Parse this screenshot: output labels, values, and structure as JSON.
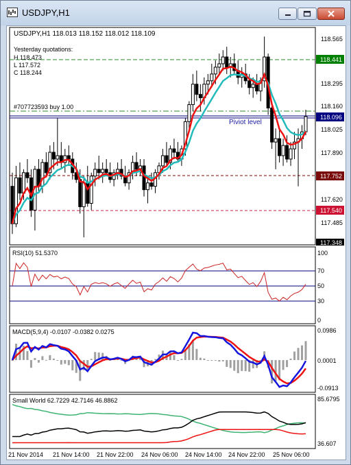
{
  "window": {
    "title": "USDJPY,H1",
    "buttons": {
      "minimize": "minimize-icon",
      "maximize": "maximize-icon",
      "close": "close-icon"
    }
  },
  "colors": {
    "bull_candle": "#ffffff",
    "bear_candle": "#000000",
    "ma_fast": "#ee1111",
    "ma_slow": "#22bbbb",
    "rsi_line": "#cc2222",
    "level_line": "#000080",
    "macd_main": "#1515e0",
    "macd_signal": "#ee1111",
    "macd_hist": "#a0a0a0",
    "sw_green": "#3cb371",
    "sw_black": "#000000",
    "sw_red": "#ee1111",
    "price_tag_green": "#008000",
    "price_tag_red": "#aa0000",
    "price_tag_blue": "#000080"
  },
  "main_panel": {
    "header": "USDJPY,H1  118.013 118.152 118.012 118.109",
    "yesterday": {
      "title": "Yesterday quotations:",
      "high": "H 118.473",
      "low": "L 117.572",
      "close": "C 118.244"
    },
    "order_label": "#707723593 buy 1.00",
    "pivot_label": "Piviot level",
    "axis_ticks": [
      "118.565",
      "118.295",
      "118.160",
      "118.025",
      "117.890",
      "117.620",
      "117.485",
      "117.348"
    ],
    "price_tags": [
      {
        "value": "118.441",
        "style": "green"
      },
      {
        "value": "118.096",
        "style": "blue"
      },
      {
        "value": "117.752",
        "style": "darkred"
      },
      {
        "value": "117.540",
        "style": "red"
      }
    ]
  },
  "rsi_panel": {
    "label": "RSI(10) 51.5370",
    "axis_ticks": [
      "100",
      "70",
      "50",
      "30",
      "0"
    ]
  },
  "macd_panel": {
    "label": "MACD(5,9,4) -0.0107 -0.0382 0.0275",
    "axis_ticks": [
      "0.0986",
      "0.0001",
      "-0.0913"
    ]
  },
  "sw_panel": {
    "label": "Small World 62.7229 42.7146 46.8862",
    "axis_ticks": [
      "85.6795",
      "36.607"
    ]
  },
  "time_axis": [
    "21 Nov 2014",
    "21 Nov 14:00",
    "21 Nov 22:00",
    "24 Nov 06:00",
    "24 Nov 14:00",
    "24 Nov 22:00",
    "25 Nov 06:00"
  ],
  "chart_data": {
    "type": "candlestick",
    "symbol": "USDJPY",
    "timeframe": "H1",
    "ylim": [
      117.348,
      118.65
    ],
    "candles": [
      [
        117.7,
        117.78,
        117.42,
        117.48
      ],
      [
        117.48,
        117.82,
        117.46,
        117.75
      ],
      [
        117.75,
        117.84,
        117.62,
        117.66
      ],
      [
        117.66,
        117.8,
        117.62,
        117.78
      ],
      [
        117.78,
        117.86,
        117.72,
        117.75
      ],
      [
        117.75,
        117.8,
        117.52,
        117.56
      ],
      [
        117.56,
        117.82,
        117.44,
        117.8
      ],
      [
        117.8,
        117.86,
        117.66,
        117.7
      ],
      [
        117.7,
        117.86,
        117.66,
        117.84
      ],
      [
        117.84,
        117.9,
        117.76,
        117.78
      ],
      [
        117.78,
        117.94,
        117.74,
        117.9
      ],
      [
        117.9,
        117.96,
        117.8,
        117.86
      ],
      [
        117.86,
        118.1,
        117.82,
        117.88
      ],
      [
        117.88,
        117.96,
        117.8,
        117.84
      ],
      [
        117.84,
        117.92,
        117.78,
        117.88
      ],
      [
        117.88,
        117.94,
        117.82,
        117.86
      ],
      [
        117.86,
        117.9,
        117.74,
        117.78
      ],
      [
        117.78,
        117.84,
        117.72,
        117.74
      ],
      [
        117.74,
        117.8,
        117.54,
        117.58
      ],
      [
        117.58,
        117.76,
        117.4,
        117.72
      ],
      [
        117.72,
        117.82,
        117.58,
        117.6
      ],
      [
        117.6,
        117.78,
        117.56,
        117.76
      ],
      [
        117.76,
        117.84,
        117.7,
        117.8
      ],
      [
        117.8,
        117.88,
        117.74,
        117.78
      ],
      [
        117.78,
        117.84,
        117.72,
        117.8
      ],
      [
        117.8,
        117.86,
        117.76,
        117.78
      ],
      [
        117.78,
        117.84,
        117.72,
        117.74
      ],
      [
        117.74,
        117.8,
        117.7,
        117.78
      ],
      [
        117.78,
        117.84,
        117.74,
        117.8
      ],
      [
        117.8,
        117.86,
        117.74,
        117.76
      ],
      [
        117.76,
        117.82,
        117.7,
        117.72
      ],
      [
        117.72,
        117.8,
        117.68,
        117.78
      ],
      [
        117.78,
        117.88,
        117.74,
        117.84
      ],
      [
        117.84,
        117.9,
        117.76,
        117.8
      ],
      [
        117.8,
        117.86,
        117.76,
        117.82
      ],
      [
        117.82,
        117.86,
        117.64,
        117.68
      ],
      [
        117.68,
        117.76,
        117.6,
        117.72
      ],
      [
        117.72,
        117.78,
        117.68,
        117.7
      ],
      [
        117.7,
        117.8,
        117.66,
        117.78
      ],
      [
        117.78,
        117.84,
        117.74,
        117.82
      ],
      [
        117.82,
        117.92,
        117.78,
        117.88
      ],
      [
        117.88,
        117.96,
        117.82,
        117.84
      ],
      [
        117.84,
        117.94,
        117.8,
        117.92
      ],
      [
        117.92,
        117.98,
        117.86,
        117.9
      ],
      [
        117.9,
        117.96,
        117.84,
        117.86
      ],
      [
        117.86,
        117.94,
        117.82,
        117.92
      ],
      [
        117.92,
        118.1,
        117.88,
        118.08
      ],
      [
        118.08,
        118.2,
        118.04,
        118.18
      ],
      [
        118.18,
        118.36,
        118.14,
        118.3
      ],
      [
        118.3,
        118.38,
        118.2,
        118.24
      ],
      [
        118.24,
        118.3,
        118.14,
        118.22
      ],
      [
        118.22,
        118.34,
        118.18,
        118.3
      ],
      [
        118.3,
        118.36,
        118.24,
        118.32
      ],
      [
        118.32,
        118.42,
        118.28,
        118.36
      ],
      [
        118.36,
        118.44,
        118.3,
        118.4
      ],
      [
        118.4,
        118.48,
        118.36,
        118.42
      ],
      [
        118.42,
        118.5,
        118.38,
        118.46
      ],
      [
        118.46,
        118.52,
        118.36,
        118.4
      ],
      [
        118.4,
        118.46,
        118.34,
        118.42
      ],
      [
        118.42,
        118.48,
        118.36,
        118.38
      ],
      [
        118.38,
        118.44,
        118.3,
        118.34
      ],
      [
        118.34,
        118.4,
        118.28,
        118.36
      ],
      [
        118.36,
        118.42,
        118.3,
        118.32
      ],
      [
        118.32,
        118.36,
        118.24,
        118.28
      ],
      [
        118.28,
        118.34,
        118.22,
        118.3
      ],
      [
        118.3,
        118.36,
        118.24,
        118.26
      ],
      [
        118.26,
        118.34,
        118.2,
        118.32
      ],
      [
        118.32,
        118.58,
        118.28,
        118.46
      ],
      [
        118.46,
        118.48,
        118.12,
        118.16
      ],
      [
        118.16,
        118.2,
        117.92,
        117.96
      ],
      [
        117.96,
        118.04,
        117.8,
        117.98
      ],
      [
        117.98,
        118.04,
        117.84,
        117.88
      ],
      [
        117.88,
        117.98,
        117.82,
        117.94
      ],
      [
        117.94,
        118.0,
        117.84,
        117.86
      ],
      [
        117.86,
        117.96,
        117.82,
        117.92
      ],
      [
        117.92,
        118.02,
        117.86,
        117.96
      ],
      [
        117.96,
        118.04,
        117.7,
        117.98
      ],
      [
        117.98,
        118.06,
        117.92,
        118.02
      ],
      [
        118.02,
        118.15,
        118.0,
        118.11
      ]
    ],
    "indicators": [
      "MA fast (red)",
      "MA slow (cyan)",
      "RSI(10)",
      "MACD(5,9,4)",
      "Small World"
    ]
  }
}
